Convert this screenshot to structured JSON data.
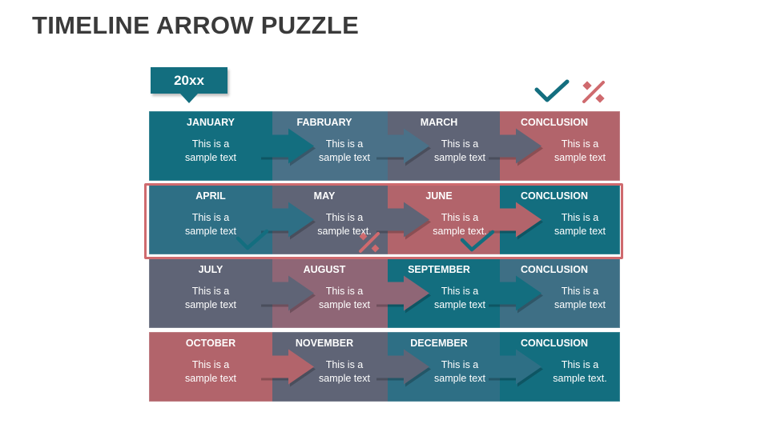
{
  "title": "TIMELINE ARROW PUZZLE",
  "year_label": "20xx",
  "colors": {
    "teal": "#136e7f",
    "steel": "#4a7188",
    "gray": "#5f6476",
    "rose": "#b2646b",
    "mauve": "#8f6676",
    "highlight_frame": "#cf6a6e",
    "check": "#136e7f",
    "percent": "#cf6a6e"
  },
  "rows": [
    {
      "cells": [
        {
          "label": "JANUARY",
          "text": [
            "This is a",
            "sample text"
          ],
          "color": "#136e7f"
        },
        {
          "label": "FABRUARY",
          "text": [
            "This is a",
            "sample text"
          ],
          "color": "#4a7188"
        },
        {
          "label": "MARCH",
          "text": [
            "This is a",
            "sample text"
          ],
          "color": "#5f6476"
        },
        {
          "label": "CONCLUSION",
          "text": [
            "This is a",
            "sample text"
          ],
          "color": "#b2646b"
        }
      ]
    },
    {
      "cells": [
        {
          "label": "APRIL",
          "text": [
            "This is a",
            "sample text"
          ],
          "color": "#2e6f85"
        },
        {
          "label": "MAY",
          "text": [
            "This is a",
            "sample text."
          ],
          "color": "#5f6476"
        },
        {
          "label": "JUNE",
          "text": [
            "This is a",
            "sample text."
          ],
          "color": "#b2646b"
        },
        {
          "label": "CONCLUSION",
          "text": [
            "This is a",
            "sample text"
          ],
          "color": "#136e7f"
        }
      ]
    },
    {
      "cells": [
        {
          "label": "JULY",
          "text": [
            "This is a",
            "sample text"
          ],
          "color": "#5f6476"
        },
        {
          "label": "AUGUST",
          "text": [
            "This is a",
            "sample text"
          ],
          "color": "#8f6676"
        },
        {
          "label": "SEPTEMBER",
          "text": [
            "This is a",
            "sample text"
          ],
          "color": "#136e7f"
        },
        {
          "label": "CONCLUSION",
          "text": [
            "This is a",
            "sample text"
          ],
          "color": "#3e6f85"
        }
      ]
    },
    {
      "cells": [
        {
          "label": "OCTOBER",
          "text": [
            "This is a",
            "sample text"
          ],
          "color": "#b2646b"
        },
        {
          "label": "NOVEMBER",
          "text": [
            "This is a",
            "sample text"
          ],
          "color": "#5f6476"
        },
        {
          "label": "DECEMBER",
          "text": [
            "This is a",
            "sample text"
          ],
          "color": "#2e6f85"
        },
        {
          "label": "CONCLUSION",
          "text": [
            "This is a",
            "sample text."
          ],
          "color": "#136e7f"
        }
      ]
    }
  ]
}
